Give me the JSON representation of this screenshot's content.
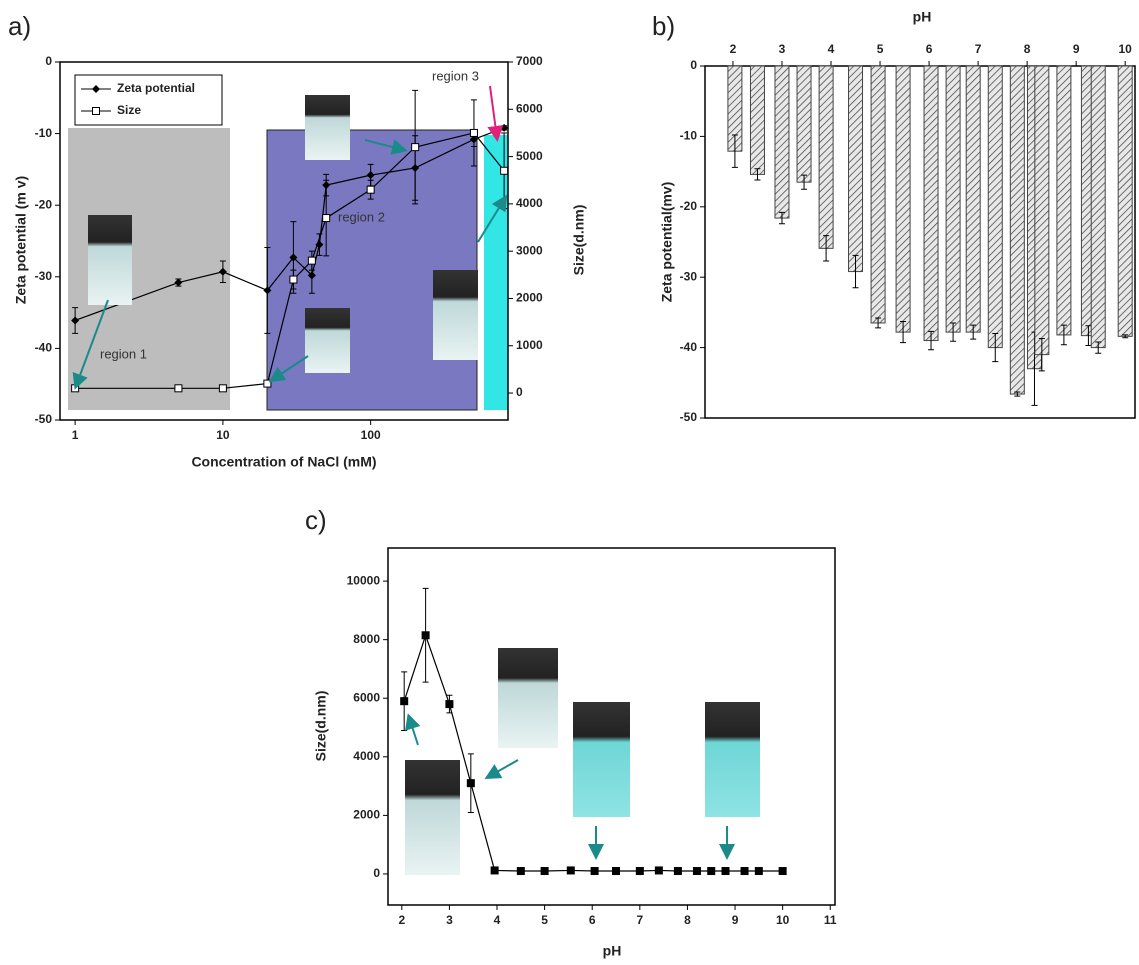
{
  "chart_data": [
    {
      "type": "line",
      "label": "a)",
      "xlabel": "Concentration of NaCl (mM)",
      "ylabel": "Zeta potential (m v)",
      "y2label": "Size(d.nm)",
      "xscale": "log",
      "xlim": [
        0.79,
        850
      ],
      "xticks": [
        1,
        10,
        100
      ],
      "ylim": [
        -50,
        0
      ],
      "yticks": [
        0,
        -10,
        -20,
        -30,
        -40,
        -50
      ],
      "y2lim": [
        -570,
        7000
      ],
      "y2ticks": [
        0,
        1000,
        2000,
        3000,
        4000,
        5000,
        6000,
        7000
      ],
      "legend": "upper left",
      "annotations": [
        "region 1",
        "region 2",
        "region 3"
      ],
      "series": [
        {
          "name": "Zeta potential",
          "color": "#000000",
          "marker": "diamond",
          "x": [
            1,
            5,
            10,
            20,
            30,
            40,
            45,
            50,
            100,
            200,
            500,
            800
          ],
          "values": [
            -36.1,
            -30.8,
            -29.3,
            -31.9,
            -27.3,
            -29.8,
            -25.5,
            -17.2,
            -15.8,
            -14.8,
            -10.8,
            -9.2
          ],
          "errors": [
            1.8,
            0.5,
            1.5,
            6,
            5,
            2.5,
            1.5,
            1.5,
            1.5,
            4.5,
            1,
            0.3
          ]
        },
        {
          "name": "Size",
          "color": "#000000",
          "marker": "square-open",
          "axis": "y2",
          "x": [
            1,
            5,
            10,
            20,
            30,
            40,
            50,
            100,
            200,
            500,
            800
          ],
          "values": [
            100,
            100,
            100,
            200,
            2400,
            2800,
            3700,
            4300,
            5200,
            5500,
            4700
          ],
          "errors": [
            null,
            null,
            null,
            null,
            200,
            200,
            800,
            200,
            1200,
            700,
            800
          ]
        }
      ]
    },
    {
      "type": "bar",
      "label": "b)",
      "xlabel": "pH",
      "ylabel": "Zeta potential(mv)",
      "xaxis": "top",
      "color": "#444444",
      "xlim": [
        1.43,
        10.2
      ],
      "xticks": [
        2,
        3,
        4,
        5,
        6,
        7,
        8,
        9,
        10
      ],
      "ylim": [
        -50,
        0
      ],
      "yticks": [
        0,
        -10,
        -20,
        -30,
        -40,
        -50
      ],
      "x": [
        2.04,
        2.5,
        3.0,
        3.45,
        3.9,
        4.5,
        4.96,
        5.47,
        6.04,
        6.49,
        6.9,
        7.35,
        7.8,
        8.15,
        8.3,
        8.75,
        9.25,
        9.45,
        10.0
      ],
      "values": [
        -12.1,
        -15.4,
        -21.6,
        -16.5,
        -25.9,
        -29.2,
        -36.5,
        -37.8,
        -39,
        -37.8,
        -37.8,
        -40,
        -46.6,
        -43,
        -41,
        -38.2,
        -38.3,
        -40,
        -38.4
      ],
      "errors": [
        2.3,
        0.8,
        0.8,
        1,
        1.8,
        2.3,
        0.7,
        1.5,
        1.3,
        1.3,
        1,
        2,
        0.3,
        5.2,
        2.3,
        1.4,
        1.4,
        0.8,
        0.2
      ]
    },
    {
      "type": "line",
      "label": "c)",
      "xlabel": "pH",
      "ylabel": "Size(d.nm)",
      "xlim": [
        1.71,
        11.1
      ],
      "xticks": [
        2,
        3,
        4,
        5,
        6,
        7,
        8,
        9,
        10,
        11
      ],
      "ylim": [
        -1060,
        11130
      ],
      "yticks": [
        0,
        2000,
        4000,
        6000,
        8000,
        10000
      ],
      "series": [
        {
          "name": null,
          "color": "#000000",
          "marker": "square",
          "x": [
            2.05,
            2.5,
            3.0,
            3.45,
            3.95,
            4.5,
            5.0,
            5.55,
            6.05,
            6.5,
            7.0,
            7.4,
            7.8,
            8.2,
            8.5,
            8.8,
            9.2,
            9.5,
            10.0
          ],
          "values": [
            5900,
            8150,
            5800,
            3100,
            120,
            100,
            100,
            120,
            100,
            100,
            100,
            120,
            100,
            100,
            100,
            100,
            100,
            100,
            100
          ],
          "errors": [
            1000,
            1600,
            300,
            1000,
            null,
            null,
            null,
            null,
            null,
            null,
            null,
            null,
            null,
            null,
            null,
            null,
            null,
            null,
            null
          ]
        }
      ]
    }
  ]
}
